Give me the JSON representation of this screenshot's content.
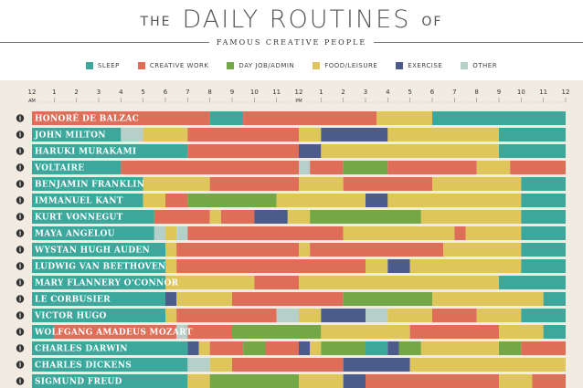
{
  "header": {
    "title_prefix": "THE",
    "title_main": "DAILY ROUTINES",
    "title_suffix": "OF",
    "subtitle": "FAMOUS CREATIVE PEOPLE"
  },
  "legend": [
    {
      "key": "sleep",
      "label": "SLEEP",
      "color": "#3ca89c"
    },
    {
      "key": "creative",
      "label": "CREATIVE WORK",
      "color": "#de6e58"
    },
    {
      "key": "day",
      "label": "DAY JOB/ADMIN",
      "color": "#74a847"
    },
    {
      "key": "food",
      "label": "FOOD/LEISURE",
      "color": "#dfc65a"
    },
    {
      "key": "exercise",
      "label": "EXERCISE",
      "color": "#4a5b8c"
    },
    {
      "key": "other",
      "label": "OTHER",
      "color": "#b5cfc9"
    }
  ],
  "axis": {
    "ticks": [
      "12",
      "1",
      "2",
      "3",
      "4",
      "5",
      "6",
      "7",
      "8",
      "9",
      "10",
      "11",
      "12",
      "1",
      "2",
      "3",
      "4",
      "5",
      "6",
      "7",
      "8",
      "9",
      "10",
      "11",
      "12"
    ],
    "am_label": "AM",
    "pm_label": "PM",
    "info_glyph": "i"
  },
  "chart_data": {
    "type": "timeline",
    "x_unit": "hour of day",
    "xlim": [
      0,
      24
    ],
    "rows": [
      {
        "name": "HONORÉ DE BALZAC",
        "segments": [
          [
            0,
            8,
            "creative"
          ],
          [
            8,
            9.5,
            "sleep"
          ],
          [
            9.5,
            15.5,
            "creative"
          ],
          [
            15.5,
            18,
            "food"
          ],
          [
            18,
            24,
            "sleep"
          ]
        ]
      },
      {
        "name": "JOHN MILTON",
        "segments": [
          [
            0,
            4,
            "sleep"
          ],
          [
            4,
            5,
            "other"
          ],
          [
            5,
            7,
            "food"
          ],
          [
            7,
            12,
            "creative"
          ],
          [
            12,
            13,
            "food"
          ],
          [
            13,
            16,
            "exercise"
          ],
          [
            16,
            21,
            "food"
          ],
          [
            21,
            24,
            "sleep"
          ]
        ]
      },
      {
        "name": "HARUKI MURAKAMI",
        "segments": [
          [
            0,
            7,
            "sleep"
          ],
          [
            7,
            12,
            "creative"
          ],
          [
            12,
            13,
            "exercise"
          ],
          [
            13,
            21,
            "food"
          ],
          [
            21,
            24,
            "sleep"
          ]
        ]
      },
      {
        "name": "VOLTAIRE",
        "segments": [
          [
            0,
            4,
            "sleep"
          ],
          [
            4,
            12,
            "creative"
          ],
          [
            12,
            12.5,
            "other"
          ],
          [
            12.5,
            14,
            "creative"
          ],
          [
            14,
            16,
            "day"
          ],
          [
            16,
            20,
            "creative"
          ],
          [
            20,
            21.5,
            "food"
          ],
          [
            21.5,
            24,
            "creative"
          ]
        ]
      },
      {
        "name": "BENJAMIN FRANKLIN",
        "segments": [
          [
            0,
            5,
            "sleep"
          ],
          [
            5,
            8,
            "food"
          ],
          [
            8,
            12,
            "creative"
          ],
          [
            12,
            14,
            "food"
          ],
          [
            14,
            18,
            "creative"
          ],
          [
            18,
            22,
            "food"
          ],
          [
            22,
            24,
            "sleep"
          ]
        ]
      },
      {
        "name": "IMMANUEL KANT",
        "segments": [
          [
            0,
            5,
            "sleep"
          ],
          [
            5,
            6,
            "food"
          ],
          [
            6,
            7,
            "creative"
          ],
          [
            7,
            11,
            "day"
          ],
          [
            11,
            15,
            "food"
          ],
          [
            15,
            16,
            "exercise"
          ],
          [
            16,
            22,
            "food"
          ],
          [
            22,
            24,
            "sleep"
          ]
        ]
      },
      {
        "name": "KURT VONNEGUT",
        "segments": [
          [
            0,
            5.5,
            "sleep"
          ],
          [
            5.5,
            8,
            "creative"
          ],
          [
            8,
            8.5,
            "food"
          ],
          [
            8.5,
            10,
            "creative"
          ],
          [
            10,
            11.5,
            "exercise"
          ],
          [
            11.5,
            12.5,
            "food"
          ],
          [
            12.5,
            17.5,
            "day"
          ],
          [
            17.5,
            22,
            "food"
          ],
          [
            22,
            24,
            "sleep"
          ]
        ]
      },
      {
        "name": "MAYA ANGELOU",
        "segments": [
          [
            0,
            5.5,
            "sleep"
          ],
          [
            5.5,
            6,
            "other"
          ],
          [
            6,
            6.5,
            "food"
          ],
          [
            6.5,
            7,
            "other"
          ],
          [
            7,
            14,
            "creative"
          ],
          [
            14,
            19,
            "food"
          ],
          [
            19,
            19.5,
            "creative"
          ],
          [
            19.5,
            22,
            "food"
          ],
          [
            22,
            24,
            "sleep"
          ]
        ]
      },
      {
        "name": "WYSTAN HUGH AUDEN",
        "segments": [
          [
            0,
            6,
            "sleep"
          ],
          [
            6,
            6.5,
            "food"
          ],
          [
            6.5,
            12,
            "creative"
          ],
          [
            12,
            12.5,
            "food"
          ],
          [
            12.5,
            18.5,
            "creative"
          ],
          [
            18.5,
            22,
            "food"
          ],
          [
            22,
            24,
            "sleep"
          ]
        ]
      },
      {
        "name": "LUDWIG VAN BEETHOVEN",
        "segments": [
          [
            0,
            6,
            "sleep"
          ],
          [
            6,
            6.5,
            "food"
          ],
          [
            6.5,
            15,
            "creative"
          ],
          [
            15,
            16,
            "food"
          ],
          [
            16,
            17,
            "exercise"
          ],
          [
            17,
            22,
            "food"
          ],
          [
            22,
            24,
            "sleep"
          ]
        ]
      },
      {
        "name": "MARY FLANNERY O'CONNOR",
        "segments": [
          [
            0,
            6,
            "sleep"
          ],
          [
            6,
            7,
            "food"
          ],
          [
            7,
            10,
            "food"
          ],
          [
            10,
            12,
            "creative"
          ],
          [
            12,
            21,
            "food"
          ],
          [
            21,
            24,
            "sleep"
          ]
        ]
      },
      {
        "name": "LE CORBUSIER",
        "segments": [
          [
            0,
            6,
            "sleep"
          ],
          [
            6,
            6.5,
            "exercise"
          ],
          [
            6.5,
            9,
            "food"
          ],
          [
            9,
            14,
            "creative"
          ],
          [
            14,
            18,
            "day"
          ],
          [
            18,
            23,
            "food"
          ],
          [
            23,
            24,
            "sleep"
          ]
        ]
      },
      {
        "name": "VICTOR HUGO",
        "segments": [
          [
            0,
            6,
            "sleep"
          ],
          [
            6,
            6.5,
            "food"
          ],
          [
            6.5,
            11,
            "creative"
          ],
          [
            11,
            12,
            "other"
          ],
          [
            12,
            13,
            "food"
          ],
          [
            13,
            15,
            "exercise"
          ],
          [
            15,
            16,
            "other"
          ],
          [
            16,
            18,
            "food"
          ],
          [
            18,
            20,
            "creative"
          ],
          [
            20,
            22,
            "food"
          ],
          [
            22,
            24,
            "sleep"
          ]
        ]
      },
      {
        "name": "WOLFGANG AMADEUS MOZART",
        "segments": [
          [
            0,
            1,
            "sleep"
          ],
          [
            1,
            6.5,
            "creative"
          ],
          [
            6.5,
            7,
            "other"
          ],
          [
            7,
            9,
            "creative"
          ],
          [
            9,
            13,
            "day"
          ],
          [
            13,
            17,
            "food"
          ],
          [
            17,
            21,
            "creative"
          ],
          [
            21,
            23,
            "food"
          ],
          [
            23,
            24,
            "sleep"
          ]
        ]
      },
      {
        "name": "CHARLES DARWIN",
        "segments": [
          [
            0,
            7,
            "sleep"
          ],
          [
            7,
            7.5,
            "exercise"
          ],
          [
            7.5,
            8,
            "food"
          ],
          [
            8,
            9.5,
            "creative"
          ],
          [
            9.5,
            10.5,
            "day"
          ],
          [
            10.5,
            12,
            "creative"
          ],
          [
            12,
            12.5,
            "exercise"
          ],
          [
            12.5,
            13,
            "food"
          ],
          [
            13,
            15,
            "day"
          ],
          [
            15,
            16,
            "sleep"
          ],
          [
            16,
            16.5,
            "exercise"
          ],
          [
            16.5,
            17.5,
            "day"
          ],
          [
            17.5,
            21,
            "food"
          ],
          [
            21,
            22,
            "day"
          ],
          [
            22,
            24,
            "creative"
          ]
        ]
      },
      {
        "name": "CHARLES DICKENS",
        "segments": [
          [
            0,
            7,
            "sleep"
          ],
          [
            7,
            8,
            "other"
          ],
          [
            8,
            9,
            "food"
          ],
          [
            9,
            14,
            "creative"
          ],
          [
            14,
            17,
            "exercise"
          ],
          [
            17,
            24,
            "food"
          ]
        ]
      },
      {
        "name": "SIGMUND FREUD",
        "segments": [
          [
            0,
            7,
            "sleep"
          ],
          [
            7,
            8,
            "food"
          ],
          [
            8,
            12,
            "day"
          ],
          [
            12,
            14,
            "food"
          ],
          [
            14,
            15,
            "exercise"
          ],
          [
            15,
            21,
            "creative"
          ],
          [
            21,
            22.5,
            "food"
          ],
          [
            22.5,
            24,
            "creative"
          ]
        ]
      }
    ]
  }
}
